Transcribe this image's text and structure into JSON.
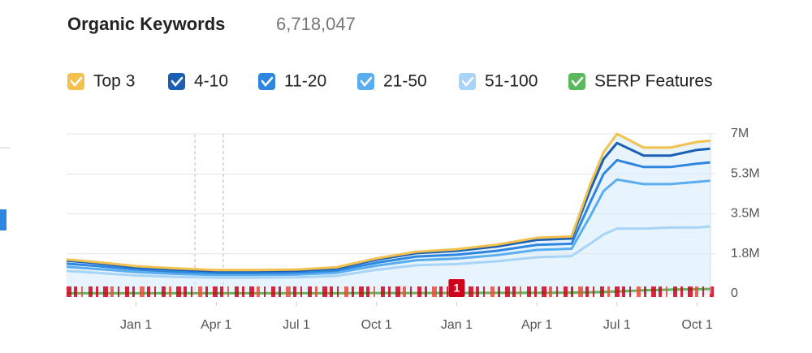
{
  "chart_data": {
    "type": "area",
    "title": "Organic Keywords",
    "subtitle": "6,718,047",
    "x": [
      0.4,
      1.5,
      3,
      4.5,
      6,
      7.5,
      9,
      10.5,
      12,
      13.5,
      15,
      16.5,
      18,
      19.3,
      20,
      20.5,
      21,
      22,
      23,
      24,
      24.5
    ],
    "xlim": [
      0.4,
      24.5
    ],
    "xticks": [
      {
        "value": 3,
        "label": "Jan 1"
      },
      {
        "value": 6,
        "label": "Apr 1"
      },
      {
        "value": 9,
        "label": "Jul 1"
      },
      {
        "value": 12,
        "label": "Oct 1"
      },
      {
        "value": 15,
        "label": "Jan 1"
      },
      {
        "value": 18,
        "label": "Apr 1"
      },
      {
        "value": 21,
        "label": "Jul 1"
      },
      {
        "value": 24,
        "label": "Oct 1"
      }
    ],
    "ylim": [
      0,
      7000000
    ],
    "yticks": [
      0,
      {
        "value": 1750000,
        "label": "1.8M"
      },
      {
        "value": 3500000,
        "label": "3.5M"
      },
      {
        "value": 5250000,
        "label": "5.3M"
      },
      {
        "value": 7000000,
        "label": "7M"
      }
    ],
    "grid": true,
    "annotations": [
      {
        "label": "1",
        "x": 15
      }
    ],
    "series": [
      {
        "name": "Top 3",
        "color": "#f2c14e",
        "stacked": true,
        "values": [
          50000,
          50000,
          50000,
          50000,
          50000,
          50000,
          50000,
          50000,
          60000,
          60000,
          70000,
          80000,
          90000,
          90000,
          250000,
          300000,
          400000,
          350000,
          350000,
          350000,
          350000
        ]
      },
      {
        "name": "4-10",
        "color": "#1a5fb4",
        "stacked": true,
        "values": [
          130000,
          120000,
          100000,
          90000,
          80000,
          80000,
          80000,
          90000,
          130000,
          150000,
          170000,
          190000,
          220000,
          230000,
          550000,
          650000,
          750000,
          500000,
          500000,
          600000,
          600000
        ]
      },
      {
        "name": "11-20",
        "color": "#2f86e0",
        "stacked": true,
        "values": [
          140000,
          130000,
          110000,
          100000,
          90000,
          90000,
          90000,
          100000,
          130000,
          160000,
          170000,
          190000,
          220000,
          220000,
          600000,
          750000,
          850000,
          750000,
          750000,
          800000,
          800000
        ]
      },
      {
        "name": "21-50",
        "color": "#5aaef0",
        "stacked": true,
        "values": [
          180000,
          170000,
          150000,
          130000,
          120000,
          120000,
          120000,
          140000,
          180000,
          220000,
          240000,
          270000,
          320000,
          320000,
          1200000,
          1900000,
          2150000,
          1950000,
          1900000,
          2000000,
          2000000
        ]
      },
      {
        "name": "51-100",
        "color": "#a7d4f7",
        "stacked": true,
        "values": [
          1000000,
          920000,
          800000,
          740000,
          700000,
          700000,
          720000,
          780000,
          1050000,
          1250000,
          1300000,
          1420000,
          1600000,
          1650000,
          2200000,
          2600000,
          2850000,
          2850000,
          2900000,
          2900000,
          2950000
        ]
      },
      {
        "name": "SERP Features",
        "color": "#5cb85c",
        "stacked": false,
        "values": [
          20000,
          20000,
          20000,
          20000,
          20000,
          20000,
          20000,
          20000,
          30000,
          30000,
          30000,
          40000,
          40000,
          50000,
          60000,
          80000,
          100000,
          150000,
          180000,
          200000,
          210000
        ]
      }
    ]
  }
}
